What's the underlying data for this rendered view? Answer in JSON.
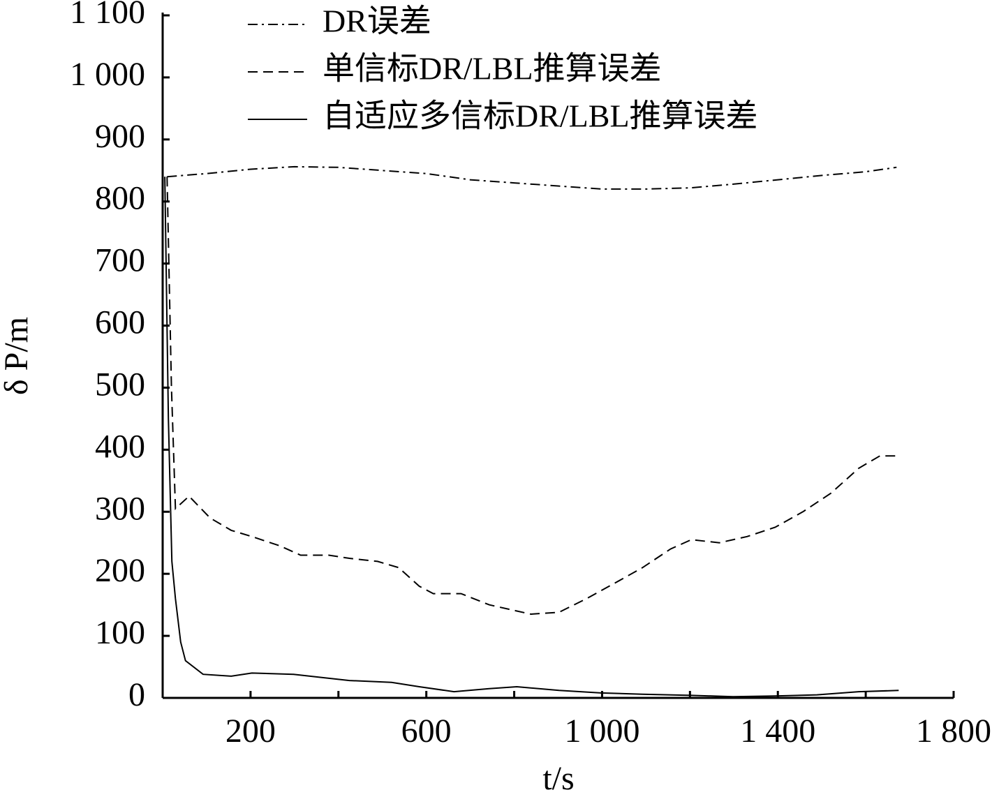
{
  "chart_data": {
    "type": "line",
    "xlabel": "t/s",
    "ylabel": "δ P/m",
    "xlim": [
      0,
      1800
    ],
    "ylim": [
      0,
      1100
    ],
    "xticks": [
      200,
      600,
      {
        "value": 1000,
        "label": "1 000"
      },
      {
        "value": 1400,
        "label": "1 400"
      },
      {
        "value": 1800,
        "label": "1 800"
      }
    ],
    "xminor_ticks": [
      400,
      800,
      1200,
      1600
    ],
    "yticks": [
      0,
      100,
      200,
      300,
      400,
      500,
      600,
      700,
      800,
      900,
      {
        "value": 1000,
        "label": "1 000"
      },
      {
        "value": 1100,
        "label": "1 100"
      }
    ],
    "legend": "upper left",
    "series": [
      {
        "name": "DR误差",
        "color": "#000000",
        "dash": "dashdot",
        "x": [
          10,
          100,
          200,
          300,
          400,
          500,
          600,
          700,
          800,
          900,
          1000,
          1100,
          1200,
          1300,
          1400,
          1500,
          1600,
          1670
        ],
        "values": [
          840,
          845,
          852,
          856,
          855,
          850,
          845,
          835,
          830,
          825,
          820,
          820,
          822,
          828,
          835,
          842,
          848,
          855
        ]
      },
      {
        "name": "单信标DR/LBL推算误差",
        "color": "#000000",
        "dash": "dashed",
        "x": [
          10,
          20,
          29,
          60,
          108,
          156,
          203,
          267,
          314,
          378,
          425,
          489,
          537,
          584,
          616,
          679,
          743,
          838,
          902,
          965,
          1029,
          1092,
          1156,
          1203,
          1267,
          1330,
          1394,
          1457,
          1521,
          1584,
          1632,
          1675
        ],
        "values": [
          840,
          500,
          305,
          325,
          290,
          270,
          260,
          245,
          230,
          230,
          225,
          220,
          210,
          180,
          168,
          168,
          150,
          135,
          138,
          160,
          185,
          210,
          240,
          255,
          250,
          260,
          275,
          300,
          330,
          370,
          390,
          390
        ]
      },
      {
        "name": "自适应多信标DR/LBL推算误差",
        "color": "#000000",
        "dash": "solid",
        "x": [
          5,
          13,
          21,
          29,
          41,
          52,
          92,
          156,
          203,
          298,
          362,
          425,
          521,
          584,
          663,
          743,
          806,
          902,
          997,
          1092,
          1203,
          1298,
          1394,
          1489,
          1584,
          1675
        ],
        "values": [
          840,
          450,
          220,
          160,
          90,
          60,
          38,
          35,
          40,
          38,
          33,
          28,
          25,
          18,
          10,
          15,
          18,
          12,
          8,
          6,
          4,
          2,
          3,
          5,
          10,
          12
        ]
      }
    ]
  }
}
